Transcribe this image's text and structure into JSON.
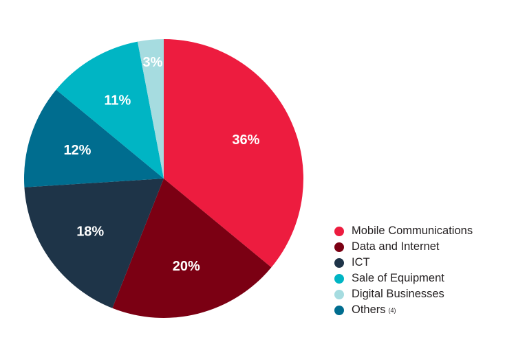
{
  "chart_data": {
    "type": "pie",
    "title": "",
    "slices": [
      {
        "name": "Mobile Communications",
        "value": 36,
        "label": "36%",
        "color": "#ed1c3f"
      },
      {
        "name": "Data and Internet",
        "value": 20,
        "label": "20%",
        "color": "#7b0013"
      },
      {
        "name": "ICT",
        "value": 18,
        "label": "18%",
        "color": "#1e3448"
      },
      {
        "name": "Others",
        "value": 12,
        "label": "12%",
        "color": "#006d8f"
      },
      {
        "name": "Sale of Equipment",
        "value": 11,
        "label": "11%",
        "color": "#00b5c4"
      },
      {
        "name": "Digital Businesses",
        "value": 3,
        "label": "3%",
        "color": "#a6dce0"
      }
    ],
    "start_angle_deg": 0,
    "direction": "clockwise",
    "legend_position": "bottom-right",
    "legend": [
      {
        "name": "Mobile Communications",
        "color": "#ed1c3f",
        "note": ""
      },
      {
        "name": "Data and Internet",
        "color": "#7b0013",
        "note": ""
      },
      {
        "name": "ICT",
        "color": "#1e3448",
        "note": ""
      },
      {
        "name": "Sale of Equipment",
        "color": "#00b5c4",
        "note": ""
      },
      {
        "name": "Digital Businesses",
        "color": "#a6dce0",
        "note": ""
      },
      {
        "name": "Others",
        "color": "#006d8f",
        "note": "(4)"
      }
    ]
  }
}
